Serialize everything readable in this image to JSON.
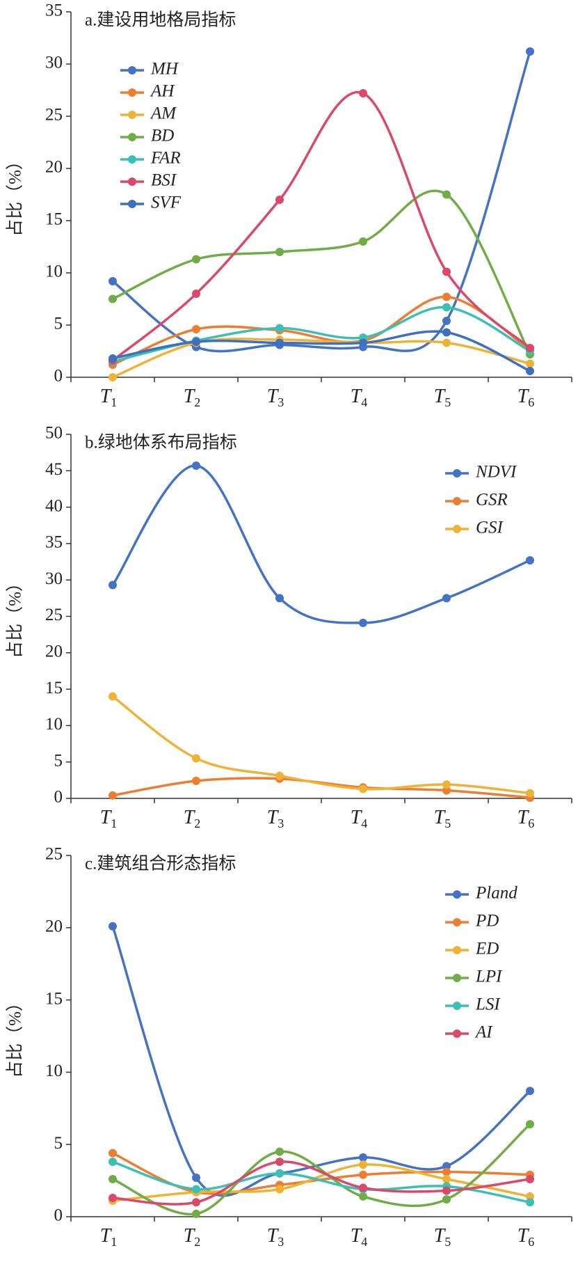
{
  "chart_data": [
    {
      "type": "line",
      "title": "a.建设用地格局指标",
      "ylabel": "占比（%）",
      "legend": "top-left",
      "categories": [
        "T1",
        "T2",
        "T3",
        "T4",
        "T5",
        "T6"
      ],
      "ylim": [
        0,
        35
      ],
      "yticks": [
        0,
        5,
        10,
        15,
        20,
        25,
        30,
        35
      ],
      "series": [
        {
          "name": "MH",
          "color": "#4472c4",
          "values": [
            9.2,
            2.9,
            3.1,
            2.9,
            5.4,
            31.2
          ]
        },
        {
          "name": "AH",
          "color": "#ed7d31",
          "values": [
            1.2,
            4.6,
            4.5,
            3.5,
            7.7,
            2.6
          ]
        },
        {
          "name": "AM",
          "color": "#eeb336",
          "values": [
            0,
            3.3,
            3.6,
            3.3,
            3.3,
            1.3
          ]
        },
        {
          "name": "BD",
          "color": "#70ad47",
          "values": [
            7.5,
            11.3,
            12,
            13,
            17.5,
            2.2
          ]
        },
        {
          "name": "FAR",
          "color": "#3cbfb4",
          "values": [
            1.5,
            3.5,
            4.7,
            3.8,
            6.7,
            2.5
          ]
        },
        {
          "name": "BSI",
          "color": "#d9496a",
          "values": [
            1.6,
            8,
            17,
            27.2,
            10.1,
            2.8
          ]
        },
        {
          "name": "SVF",
          "color": "#3f6fc0",
          "values": [
            1.8,
            3.4,
            3.3,
            3.3,
            4.3,
            0.6
          ]
        }
      ]
    },
    {
      "type": "line",
      "title": "b.绿地体系布局指标",
      "ylabel": "占比（%）",
      "legend": "top-right",
      "categories": [
        "T1",
        "T2",
        "T3",
        "T4",
        "T5",
        "T6"
      ],
      "ylim": [
        0,
        50
      ],
      "yticks": [
        0,
        5,
        10,
        15,
        20,
        25,
        30,
        35,
        40,
        45,
        50
      ],
      "series": [
        {
          "name": "NDVI",
          "color": "#4472c4",
          "values": [
            29.3,
            45.7,
            27.5,
            24.1,
            27.5,
            32.7
          ]
        },
        {
          "name": "GSR",
          "color": "#ed7d31",
          "values": [
            0.4,
            2.4,
            2.7,
            1.5,
            1.1,
            0.1
          ]
        },
        {
          "name": "GSI",
          "color": "#eeb336",
          "values": [
            14,
            5.5,
            3.1,
            1.3,
            1.9,
            0.7
          ]
        }
      ]
    },
    {
      "type": "line",
      "title": "c.建筑组合形态指标",
      "ylabel": "占比（%）",
      "legend": "top-right",
      "categories": [
        "T1",
        "T2",
        "T3",
        "T4",
        "T5",
        "T6"
      ],
      "ylim": [
        0,
        25
      ],
      "yticks": [
        0,
        5,
        10,
        15,
        20,
        25
      ],
      "series": [
        {
          "name": "Pland",
          "color": "#4472c4",
          "values": [
            20.1,
            2.7,
            3.0,
            4.1,
            3.5,
            8.7
          ]
        },
        {
          "name": "PD",
          "color": "#ed7d31",
          "values": [
            4.4,
            1.7,
            2.2,
            2.9,
            3.1,
            2.9
          ]
        },
        {
          "name": "ED",
          "color": "#eeb336",
          "values": [
            1.1,
            1.7,
            1.9,
            3.6,
            2.6,
            1.4
          ]
        },
        {
          "name": "LPI",
          "color": "#70ad47",
          "values": [
            2.6,
            0.2,
            4.5,
            1.4,
            1.2,
            6.4
          ]
        },
        {
          "name": "LSI",
          "color": "#3cbfb4",
          "values": [
            3.8,
            1.9,
            3.0,
            1.9,
            2.1,
            1.0
          ]
        },
        {
          "name": "AI",
          "color": "#d9496a",
          "values": [
            1.3,
            1.0,
            3.8,
            2.0,
            1.8,
            2.6
          ]
        }
      ]
    }
  ]
}
